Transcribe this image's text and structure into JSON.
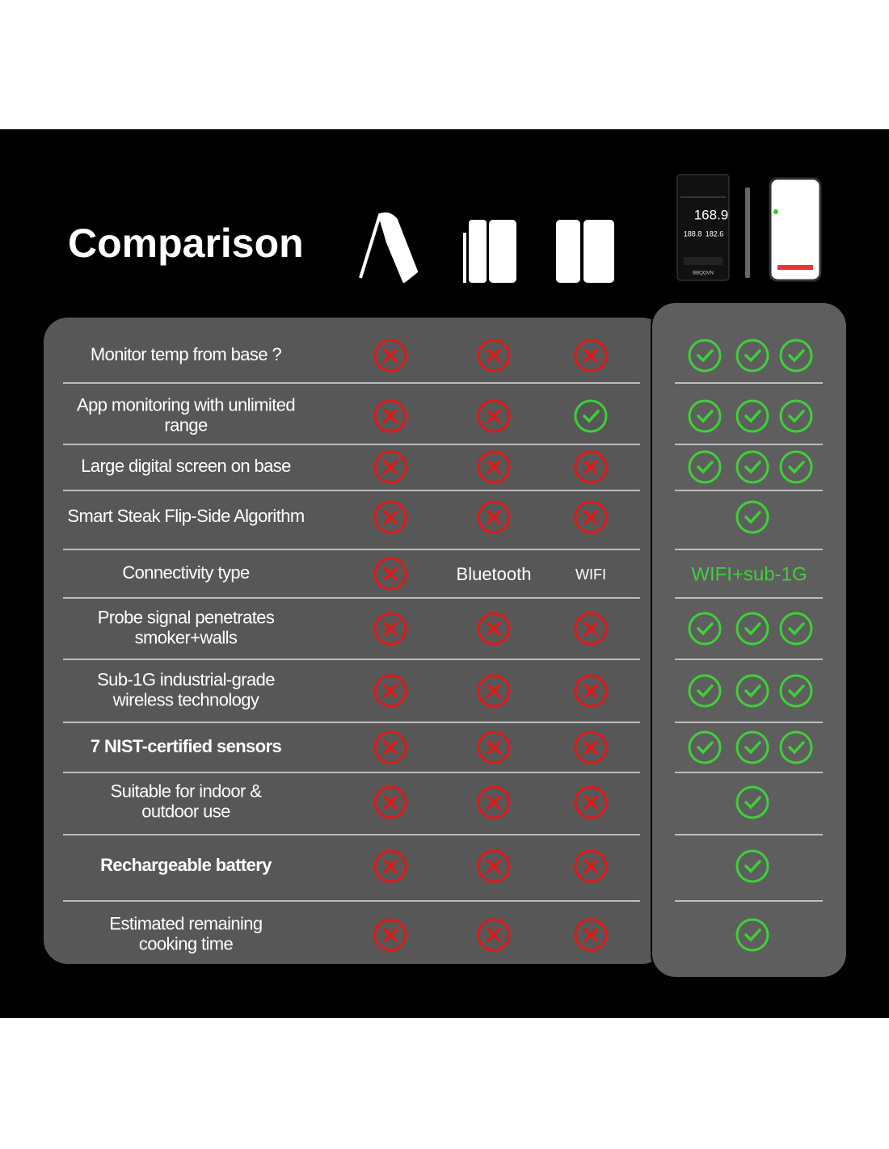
{
  "header": {
    "title": "Comparison",
    "device": {
      "reading": "168.9",
      "target": "188.8",
      "ambient": "182.6",
      "brand": "BBQOVN"
    }
  },
  "table": {
    "rows": [
      {
        "label": [
          "Monitor temp from base ?"
        ],
        "cells": [
          false,
          false,
          false
        ],
        "ours": [
          true,
          true,
          true
        ]
      },
      {
        "label": [
          "App monitoring with unlimited",
          "range"
        ],
        "cells": [
          false,
          false,
          true
        ],
        "ours": [
          true,
          true,
          true
        ]
      },
      {
        "label": [
          "Large digital screen on base"
        ],
        "cells": [
          false,
          false,
          false
        ],
        "ours": [
          true,
          true,
          true
        ]
      },
      {
        "label": [
          "Smart Steak Flip-Side Algorithm"
        ],
        "cells": [
          false,
          false,
          false
        ],
        "ours": [
          true
        ]
      },
      {
        "label": [
          "Connectivity type"
        ],
        "cells": [
          false,
          "Bluetooth",
          "WIFI"
        ],
        "ours": "WIFI+sub-1G"
      },
      {
        "label": [
          "Probe signal penetrates",
          "smoker+walls"
        ],
        "cells": [
          false,
          false,
          false
        ],
        "ours": [
          true,
          true,
          true
        ]
      },
      {
        "label": [
          "Sub-1G industrial-grade",
          "wireless technology"
        ],
        "cells": [
          false,
          false,
          false
        ],
        "ours": [
          true,
          true,
          true
        ]
      },
      {
        "label": [
          "7 NIST-certified sensors"
        ],
        "cells": [
          false,
          false,
          false
        ],
        "ours": [
          true,
          true,
          true
        ]
      },
      {
        "label": [
          "Suitable for indoor &",
          "outdoor use"
        ],
        "cells": [
          false,
          false,
          false
        ],
        "ours": [
          true
        ]
      },
      {
        "label": [
          "Rechargeable battery"
        ],
        "cells": [
          false,
          false,
          false
        ],
        "ours": [
          true
        ]
      },
      {
        "label": [
          "Estimated remaining",
          "cooking time"
        ],
        "cells": [
          false,
          false,
          false
        ],
        "ours": [
          true
        ]
      }
    ]
  }
}
